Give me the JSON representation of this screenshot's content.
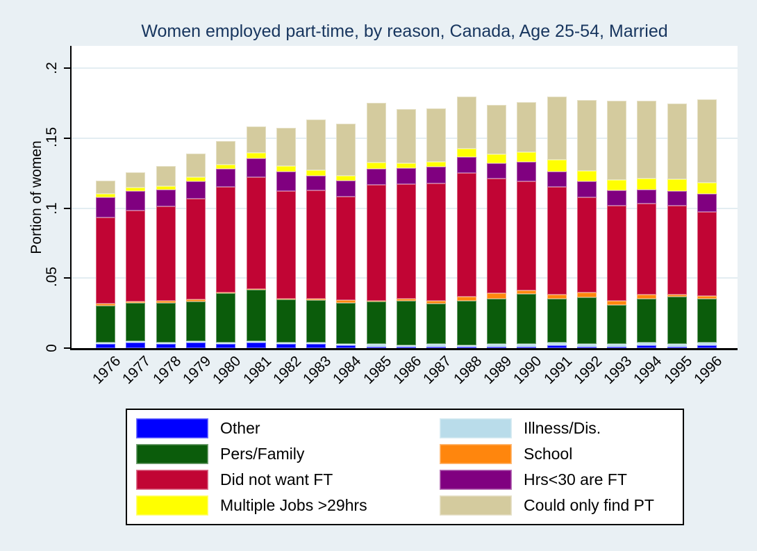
{
  "chart_data": {
    "type": "bar",
    "stacked": true,
    "title": "Women employed part-time, by reason, Canada, Age 25-54, Married",
    "ylabel": "Portion of women",
    "xlabel": "",
    "categories": [
      "1976",
      "1977",
      "1978",
      "1979",
      "1980",
      "1981",
      "1982",
      "1983",
      "1984",
      "1985",
      "1986",
      "1987",
      "1988",
      "1989",
      "1990",
      "1991",
      "1992",
      "1993",
      "1994",
      "1995",
      "1996"
    ],
    "ylim": [
      0,
      0.2
    ],
    "yticks": [
      {
        "value": 0,
        "label": "0"
      },
      {
        "value": 0.05,
        "label": ".05"
      },
      {
        "value": 0.1,
        "label": ".1"
      },
      {
        "value": 0.15,
        "label": ".15"
      },
      {
        "value": 0.2,
        "label": ".2"
      }
    ],
    "grid": true,
    "legend_position": "bottom",
    "legend_order": [
      0,
      2,
      4,
      6,
      1,
      3,
      5,
      7
    ],
    "series": [
      {
        "name": "Other",
        "color": "#0000ff",
        "values": [
          0.003,
          0.004,
          0.003,
          0.004,
          0.003,
          0.004,
          0.003,
          0.003,
          0.002,
          0.001,
          0.001,
          0.001,
          0.001,
          0.001,
          0.001,
          0.002,
          0.001,
          0.001,
          0.002,
          0.001,
          0.002
        ]
      },
      {
        "name": "Illness/Dis.",
        "color": "#b9dcea",
        "values": [
          0.001,
          0.001,
          0.001,
          0.001,
          0.001,
          0.001,
          0.001,
          0.001,
          0.001,
          0.002,
          0.001,
          0.002,
          0.001,
          0.002,
          0.002,
          0.002,
          0.002,
          0.002,
          0.002,
          0.002,
          0.002
        ]
      },
      {
        "name": "Pers/Family",
        "color": "#0b5c0b",
        "values": [
          0.0264,
          0.0274,
          0.0284,
          0.0284,
          0.035,
          0.0365,
          0.0306,
          0.0302,
          0.0294,
          0.0302,
          0.0317,
          0.0287,
          0.0317,
          0.0324,
          0.0357,
          0.0314,
          0.0332,
          0.0277,
          0.0314,
          0.0337,
          0.0314
        ]
      },
      {
        "name": "School",
        "color": "#ff860d",
        "values": [
          0.0012,
          0.0008,
          0.0013,
          0.0012,
          0.0008,
          0.0008,
          0.0008,
          0.0012,
          0.0018,
          0.0005,
          0.0017,
          0.002,
          0.003,
          0.0036,
          0.0025,
          0.003,
          0.0033,
          0.003,
          0.0028,
          0.0017,
          0.002
        ]
      },
      {
        "name": "Did not want FT",
        "color": "#c10534",
        "values": [
          0.0618,
          0.0649,
          0.0675,
          0.0721,
          0.0752,
          0.08,
          0.0766,
          0.0771,
          0.0741,
          0.083,
          0.0816,
          0.0838,
          0.0882,
          0.0823,
          0.078,
          0.0769,
          0.068,
          0.068,
          0.0649,
          0.0633,
          0.0597
        ]
      },
      {
        "name": "Hrs<30 are FT",
        "color": "#800080",
        "values": [
          0.0143,
          0.0139,
          0.0118,
          0.0125,
          0.013,
          0.013,
          0.0141,
          0.0108,
          0.0113,
          0.0116,
          0.0116,
          0.0121,
          0.0116,
          0.0108,
          0.014,
          0.0108,
          0.0117,
          0.0108,
          0.0099,
          0.0103,
          0.0129
        ]
      },
      {
        "name": "Multiple Jobs >29hrs",
        "color": "#ffff00",
        "values": [
          0.0027,
          0.0027,
          0.0028,
          0.0028,
          0.003,
          0.004,
          0.0039,
          0.0036,
          0.0037,
          0.0044,
          0.0035,
          0.0036,
          0.0058,
          0.0064,
          0.0066,
          0.0085,
          0.0074,
          0.0078,
          0.0081,
          0.0088,
          0.008
        ]
      },
      {
        "name": "Could only find PT",
        "color": "#d4cb9e",
        "values": [
          0.0091,
          0.0107,
          0.0142,
          0.017,
          0.017,
          0.019,
          0.0276,
          0.0362,
          0.0368,
          0.0425,
          0.0387,
          0.0381,
          0.0374,
          0.035,
          0.036,
          0.0451,
          0.0506,
          0.0564,
          0.0556,
          0.0539,
          0.0597
        ]
      }
    ]
  },
  "colors": {
    "background": "#e9f0f4",
    "plot_background": "#ffffff",
    "title": "#17355e",
    "grid": "#e3edf2",
    "axis": "#000000"
  }
}
